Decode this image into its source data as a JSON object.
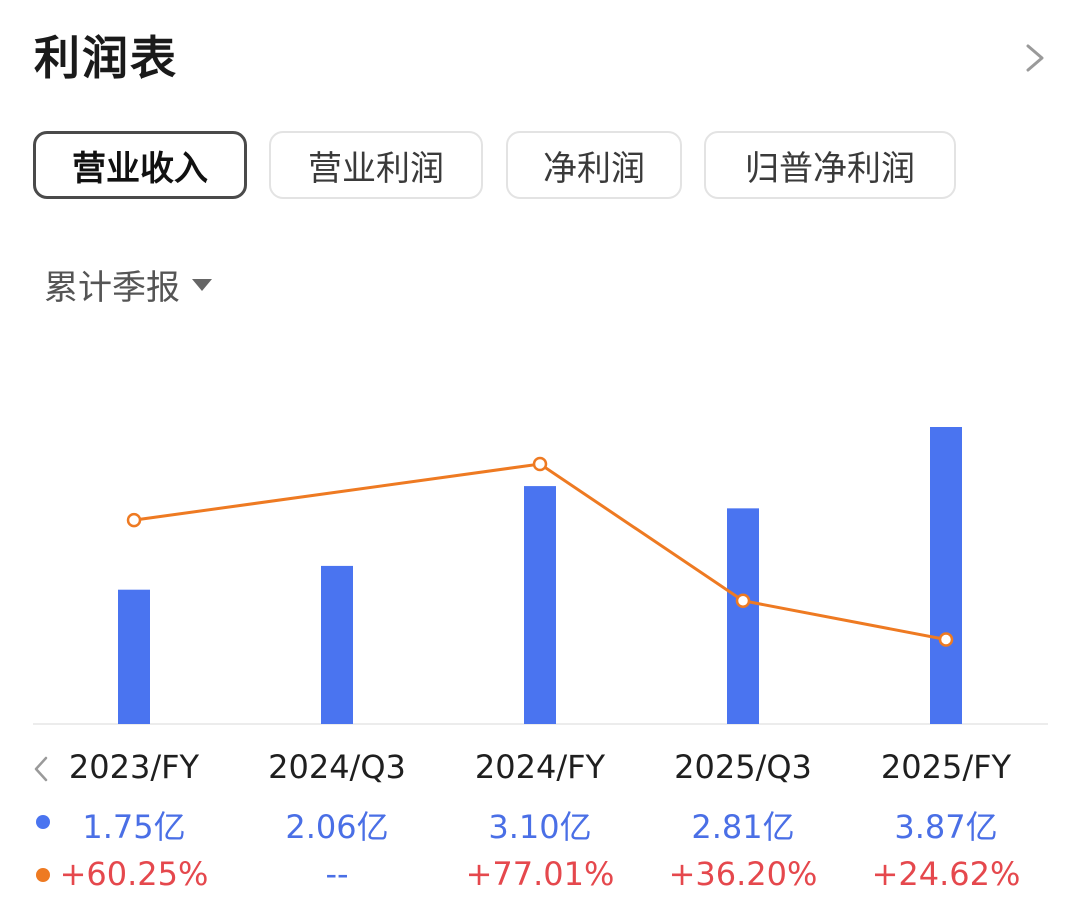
{
  "header": {
    "title": "利润表"
  },
  "tabs": [
    {
      "label": "营业收入",
      "active": true
    },
    {
      "label": "营业利润",
      "active": false
    },
    {
      "label": "净利润",
      "active": false
    },
    {
      "label": "归普净利润",
      "active": false
    }
  ],
  "period_selector": {
    "label": "累计季报"
  },
  "colors": {
    "bar": "#4a74f0",
    "line": "#ee7a22",
    "positive": "#e5484d",
    "value_text": "#4a6fe6"
  },
  "chart_data": {
    "type": "bar+line",
    "categories": [
      "2023/FY",
      "2024/Q3",
      "2024/FY",
      "2025/Q3",
      "2025/FY"
    ],
    "series": [
      {
        "kind": "bar",
        "values": [
          1.75,
          2.06,
          3.1,
          2.81,
          3.87
        ],
        "labels": [
          "1.75亿",
          "2.06亿",
          "3.10亿",
          "2.81亿",
          "3.87亿"
        ]
      },
      {
        "kind": "line",
        "values": [
          60.25,
          null,
          77.01,
          36.2,
          24.62
        ],
        "labels": [
          "+60.25%",
          "--",
          "+77.01%",
          "+36.20%",
          "+24.62%"
        ]
      }
    ],
    "line_y_range": [
      0,
      100
    ],
    "bar_y_range": [
      0,
      4.3
    ]
  }
}
